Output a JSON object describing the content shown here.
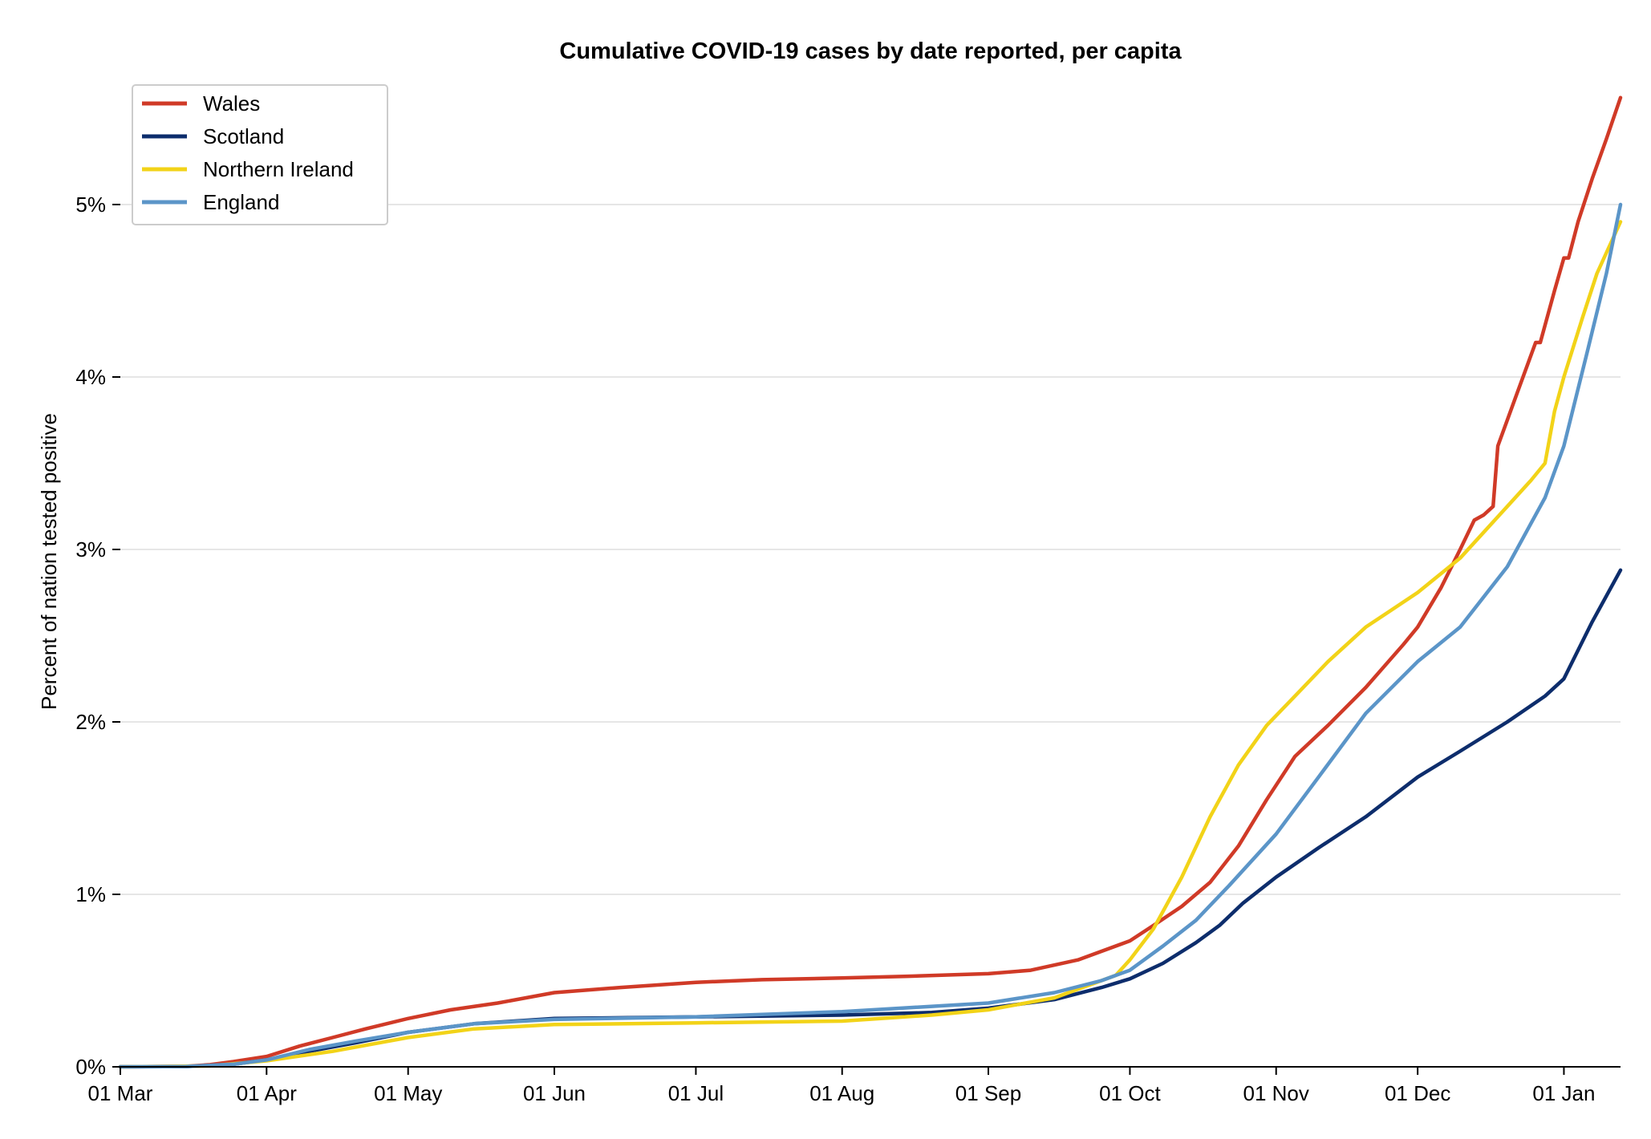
{
  "chart_data": {
    "type": "line",
    "title": "Cumulative COVID-19 cases by date reported, per capita",
    "xlabel": "",
    "ylabel": "Percent of nation tested positive",
    "x_ticks": [
      "01 Mar",
      "01 Apr",
      "01 May",
      "01 Jun",
      "01 Jul",
      "01 Aug",
      "01 Sep",
      "01 Oct",
      "01 Nov",
      "01 Dec",
      "01 Jan"
    ],
    "y_ticks": [
      "0%",
      "1%",
      "2%",
      "3%",
      "4%",
      "5%"
    ],
    "ylim": [
      0,
      5.6
    ],
    "xlim": [
      "2020-03-01",
      "2021-01-13"
    ],
    "grid": "horizontal",
    "legend_position": "top-left",
    "series": [
      {
        "name": "Wales",
        "color": "#d03a27",
        "points": [
          [
            "2020-03-01",
            0
          ],
          [
            "2020-03-15",
            0.003
          ],
          [
            "2020-03-20",
            0.012
          ],
          [
            "2020-03-25",
            0.03
          ],
          [
            "2020-04-01",
            0.06
          ],
          [
            "2020-04-08",
            0.12
          ],
          [
            "2020-04-15",
            0.17
          ],
          [
            "2020-04-22",
            0.22
          ],
          [
            "2020-05-01",
            0.28
          ],
          [
            "2020-05-10",
            0.33
          ],
          [
            "2020-05-20",
            0.37
          ],
          [
            "2020-06-01",
            0.43
          ],
          [
            "2020-06-15",
            0.46
          ],
          [
            "2020-07-01",
            0.49
          ],
          [
            "2020-07-15",
            0.505
          ],
          [
            "2020-08-01",
            0.515
          ],
          [
            "2020-08-15",
            0.525
          ],
          [
            "2020-09-01",
            0.54
          ],
          [
            "2020-09-10",
            0.56
          ],
          [
            "2020-09-20",
            0.62
          ],
          [
            "2020-10-01",
            0.73
          ],
          [
            "2020-10-06",
            0.82
          ],
          [
            "2020-10-12",
            0.93
          ],
          [
            "2020-10-18",
            1.07
          ],
          [
            "2020-10-24",
            1.28
          ],
          [
            "2020-10-30",
            1.55
          ],
          [
            "2020-11-05",
            1.8
          ],
          [
            "2020-11-12",
            1.98
          ],
          [
            "2020-11-20",
            2.2
          ],
          [
            "2020-11-28",
            2.45
          ],
          [
            "2020-12-01",
            2.55
          ],
          [
            "2020-12-06",
            2.78
          ],
          [
            "2020-12-10",
            3.0
          ],
          [
            "2020-12-13",
            3.17
          ],
          [
            "2020-12-15",
            3.2
          ],
          [
            "2020-12-17",
            3.25
          ],
          [
            "2020-12-18",
            3.6
          ],
          [
            "2020-12-22",
            3.9
          ],
          [
            "2020-12-26",
            4.2
          ],
          [
            "2020-12-27",
            4.2
          ],
          [
            "2020-12-30",
            4.5
          ],
          [
            "2021-01-01",
            4.69
          ],
          [
            "2021-01-02",
            4.69
          ],
          [
            "2021-01-04",
            4.9
          ],
          [
            "2021-01-07",
            5.15
          ],
          [
            "2021-01-10",
            5.38
          ],
          [
            "2021-01-13",
            5.62
          ]
        ]
      },
      {
        "name": "Scotland",
        "color": "#0d2d6c",
        "points": [
          [
            "2020-03-01",
            0
          ],
          [
            "2020-03-15",
            0.002
          ],
          [
            "2020-03-25",
            0.015
          ],
          [
            "2020-04-01",
            0.04
          ],
          [
            "2020-04-10",
            0.09
          ],
          [
            "2020-04-20",
            0.14
          ],
          [
            "2020-05-01",
            0.2
          ],
          [
            "2020-05-15",
            0.25
          ],
          [
            "2020-06-01",
            0.28
          ],
          [
            "2020-07-01",
            0.29
          ],
          [
            "2020-08-01",
            0.3
          ],
          [
            "2020-08-20",
            0.315
          ],
          [
            "2020-09-01",
            0.34
          ],
          [
            "2020-09-15",
            0.39
          ],
          [
            "2020-09-25",
            0.46
          ],
          [
            "2020-10-01",
            0.51
          ],
          [
            "2020-10-08",
            0.6
          ],
          [
            "2020-10-15",
            0.72
          ],
          [
            "2020-10-20",
            0.82
          ],
          [
            "2020-10-25",
            0.95
          ],
          [
            "2020-11-01",
            1.1
          ],
          [
            "2020-11-10",
            1.27
          ],
          [
            "2020-11-20",
            1.45
          ],
          [
            "2020-12-01",
            1.68
          ],
          [
            "2020-12-10",
            1.83
          ],
          [
            "2020-12-20",
            2.0
          ],
          [
            "2020-12-28",
            2.15
          ],
          [
            "2021-01-01",
            2.25
          ],
          [
            "2021-01-07",
            2.58
          ],
          [
            "2021-01-13",
            2.88
          ]
        ]
      },
      {
        "name": "Northern Ireland",
        "color": "#f2d318",
        "points": [
          [
            "2020-03-01",
            0
          ],
          [
            "2020-03-20",
            0.005
          ],
          [
            "2020-04-01",
            0.035
          ],
          [
            "2020-04-15",
            0.09
          ],
          [
            "2020-05-01",
            0.17
          ],
          [
            "2020-05-15",
            0.22
          ],
          [
            "2020-06-01",
            0.245
          ],
          [
            "2020-07-01",
            0.255
          ],
          [
            "2020-08-01",
            0.265
          ],
          [
            "2020-08-20",
            0.3
          ],
          [
            "2020-09-01",
            0.33
          ],
          [
            "2020-09-15",
            0.4
          ],
          [
            "2020-09-28",
            0.53
          ],
          [
            "2020-10-01",
            0.62
          ],
          [
            "2020-10-06",
            0.8
          ],
          [
            "2020-10-12",
            1.1
          ],
          [
            "2020-10-18",
            1.45
          ],
          [
            "2020-10-24",
            1.75
          ],
          [
            "2020-10-30",
            1.98
          ],
          [
            "2020-11-05",
            2.15
          ],
          [
            "2020-11-12",
            2.35
          ],
          [
            "2020-11-20",
            2.55
          ],
          [
            "2020-12-01",
            2.75
          ],
          [
            "2020-12-10",
            2.95
          ],
          [
            "2020-12-20",
            3.25
          ],
          [
            "2020-12-25",
            3.4
          ],
          [
            "2020-12-28",
            3.5
          ],
          [
            "2020-12-30",
            3.8
          ],
          [
            "2021-01-01",
            4.0
          ],
          [
            "2021-01-05",
            4.35
          ],
          [
            "2021-01-08",
            4.6
          ],
          [
            "2021-01-13",
            4.9
          ]
        ]
      },
      {
        "name": "England",
        "color": "#5b95c8",
        "points": [
          [
            "2020-03-01",
            0
          ],
          [
            "2020-03-15",
            0.002
          ],
          [
            "2020-03-25",
            0.015
          ],
          [
            "2020-04-01",
            0.04
          ],
          [
            "2020-04-10",
            0.1
          ],
          [
            "2020-04-20",
            0.15
          ],
          [
            "2020-05-01",
            0.2
          ],
          [
            "2020-05-15",
            0.25
          ],
          [
            "2020-06-01",
            0.275
          ],
          [
            "2020-07-01",
            0.29
          ],
          [
            "2020-08-01",
            0.32
          ],
          [
            "2020-09-01",
            0.37
          ],
          [
            "2020-09-15",
            0.43
          ],
          [
            "2020-09-25",
            0.5
          ],
          [
            "2020-10-01",
            0.56
          ],
          [
            "2020-10-08",
            0.7
          ],
          [
            "2020-10-15",
            0.85
          ],
          [
            "2020-10-22",
            1.05
          ],
          [
            "2020-11-01",
            1.35
          ],
          [
            "2020-11-10",
            1.68
          ],
          [
            "2020-11-20",
            2.05
          ],
          [
            "2020-12-01",
            2.35
          ],
          [
            "2020-12-10",
            2.55
          ],
          [
            "2020-12-20",
            2.9
          ],
          [
            "2020-12-28",
            3.3
          ],
          [
            "2021-01-01",
            3.6
          ],
          [
            "2021-01-06",
            4.15
          ],
          [
            "2021-01-10",
            4.6
          ],
          [
            "2021-01-13",
            5.0
          ]
        ]
      }
    ]
  }
}
